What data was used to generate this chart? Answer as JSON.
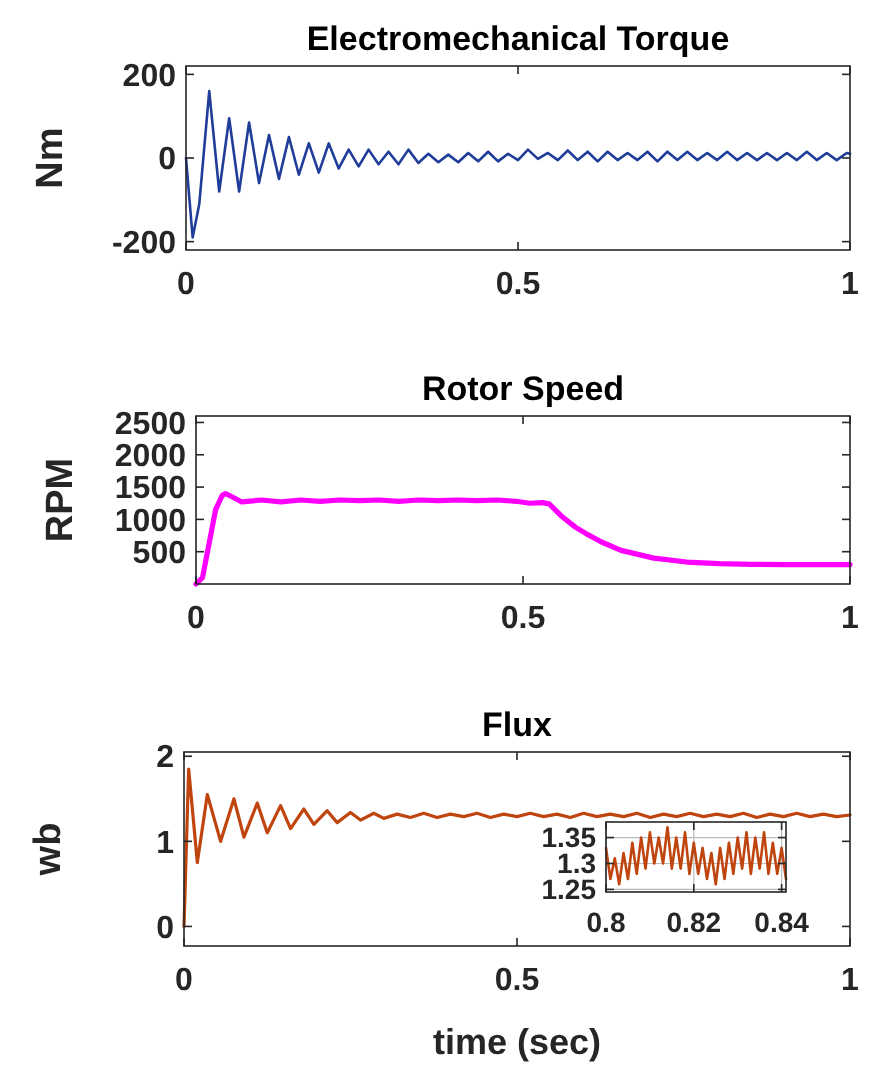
{
  "chart_data": [
    {
      "type": "line",
      "title": "Electromechanical Torque",
      "ylabel": "Nm",
      "xlim": [
        0,
        1
      ],
      "ylim": [
        -220,
        220
      ],
      "xticks": [
        0,
        0.5,
        1
      ],
      "yticks": [
        -200,
        0,
        200
      ],
      "series": [
        {
          "color": "#1f3d99",
          "x": [
            0,
            0.01,
            0.02,
            0.035,
            0.05,
            0.065,
            0.08,
            0.095,
            0.11,
            0.125,
            0.14,
            0.155,
            0.17,
            0.185,
            0.2,
            0.215,
            0.23,
            0.245,
            0.26,
            0.275,
            0.29,
            0.305,
            0.32,
            0.335,
            0.35,
            0.365,
            0.38,
            0.395,
            0.41,
            0.425,
            0.44,
            0.455,
            0.47,
            0.485,
            0.5,
            0.515,
            0.53,
            0.545,
            0.56,
            0.575,
            0.59,
            0.605,
            0.62,
            0.635,
            0.65,
            0.665,
            0.68,
            0.695,
            0.71,
            0.725,
            0.74,
            0.755,
            0.77,
            0.785,
            0.8,
            0.815,
            0.83,
            0.845,
            0.86,
            0.875,
            0.89,
            0.905,
            0.92,
            0.935,
            0.95,
            0.965,
            0.98,
            0.995,
            1
          ],
          "values": [
            0,
            -190,
            -110,
            160,
            -80,
            95,
            -80,
            85,
            -60,
            55,
            -50,
            50,
            -40,
            35,
            -35,
            35,
            -25,
            20,
            -20,
            20,
            -15,
            15,
            -15,
            20,
            -12,
            10,
            -10,
            8,
            -10,
            12,
            -8,
            15,
            -8,
            10,
            -5,
            20,
            -2,
            12,
            -5,
            18,
            -5,
            15,
            -8,
            15,
            -5,
            12,
            -5,
            15,
            -8,
            15,
            -5,
            15,
            -5,
            12,
            -5,
            15,
            -5,
            12,
            -5,
            12,
            -5,
            12,
            -5,
            15,
            -5,
            12,
            -5,
            12,
            10
          ]
        }
      ]
    },
    {
      "type": "line",
      "title": "Rotor Speed",
      "ylabel": "RPM",
      "xlim": [
        0,
        1
      ],
      "ylim": [
        0,
        2600
      ],
      "xticks": [
        0,
        0.5,
        1
      ],
      "yticks": [
        500,
        1000,
        1500,
        2000,
        2500
      ],
      "series": [
        {
          "color": "#ff00ff",
          "x": [
            0,
            0.01,
            0.03,
            0.04,
            0.045,
            0.055,
            0.07,
            0.1,
            0.13,
            0.16,
            0.19,
            0.22,
            0.25,
            0.28,
            0.31,
            0.34,
            0.37,
            0.4,
            0.43,
            0.46,
            0.49,
            0.51,
            0.53,
            0.54,
            0.56,
            0.58,
            0.6,
            0.62,
            0.65,
            0.7,
            0.75,
            0.8,
            0.85,
            0.9,
            1
          ],
          "values": [
            0,
            100,
            1150,
            1370,
            1400,
            1350,
            1270,
            1300,
            1270,
            1300,
            1280,
            1300,
            1290,
            1300,
            1280,
            1300,
            1290,
            1300,
            1290,
            1300,
            1280,
            1250,
            1260,
            1240,
            1040,
            880,
            760,
            650,
            520,
            400,
            340,
            315,
            305,
            300,
            300
          ]
        }
      ]
    },
    {
      "type": "line",
      "title": "Flux",
      "xlabel": "time (sec)",
      "ylabel": "wb",
      "xlim": [
        0,
        1
      ],
      "ylim": [
        -0.23,
        2.05
      ],
      "xticks": [
        0,
        0.5,
        1
      ],
      "yticks": [
        0,
        1,
        2
      ],
      "series": [
        {
          "color": "#c0440e",
          "x": [
            0,
            0.007,
            0.02,
            0.035,
            0.055,
            0.075,
            0.09,
            0.11,
            0.125,
            0.145,
            0.16,
            0.18,
            0.195,
            0.215,
            0.23,
            0.25,
            0.265,
            0.285,
            0.3,
            0.32,
            0.34,
            0.36,
            0.38,
            0.4,
            0.42,
            0.44,
            0.46,
            0.48,
            0.5,
            0.52,
            0.54,
            0.56,
            0.58,
            0.6,
            0.62,
            0.64,
            0.66,
            0.68,
            0.7,
            0.72,
            0.74,
            0.76,
            0.78,
            0.8,
            0.82,
            0.84,
            0.86,
            0.88,
            0.9,
            0.92,
            0.94,
            0.96,
            0.98,
            1
          ],
          "values": [
            0,
            1.85,
            0.75,
            1.55,
            1.0,
            1.5,
            1.05,
            1.45,
            1.1,
            1.42,
            1.15,
            1.38,
            1.2,
            1.36,
            1.22,
            1.34,
            1.25,
            1.33,
            1.27,
            1.32,
            1.28,
            1.33,
            1.28,
            1.32,
            1.29,
            1.33,
            1.28,
            1.32,
            1.29,
            1.33,
            1.29,
            1.32,
            1.28,
            1.33,
            1.29,
            1.32,
            1.29,
            1.33,
            1.28,
            1.32,
            1.29,
            1.33,
            1.29,
            1.32,
            1.29,
            1.33,
            1.28,
            1.32,
            1.29,
            1.33,
            1.29,
            1.32,
            1.29,
            1.31
          ]
        }
      ]
    },
    {
      "type": "line",
      "xlim": [
        0.8,
        0.841
      ],
      "ylim": [
        1.245,
        1.38
      ],
      "xticks": [
        0.8,
        0.82,
        0.84
      ],
      "yticks": [
        1.25,
        1.3,
        1.35
      ],
      "grid": true,
      "series": [
        {
          "color": "#c0440e",
          "x": [
            0.8,
            0.801,
            0.802,
            0.803,
            0.804,
            0.805,
            0.806,
            0.807,
            0.808,
            0.809,
            0.81,
            0.811,
            0.812,
            0.813,
            0.814,
            0.815,
            0.816,
            0.817,
            0.818,
            0.819,
            0.82,
            0.821,
            0.822,
            0.823,
            0.824,
            0.825,
            0.826,
            0.827,
            0.828,
            0.829,
            0.83,
            0.831,
            0.832,
            0.833,
            0.834,
            0.835,
            0.836,
            0.837,
            0.838,
            0.839,
            0.84,
            0.841
          ],
          "values": [
            1.33,
            1.27,
            1.31,
            1.26,
            1.32,
            1.27,
            1.34,
            1.28,
            1.35,
            1.29,
            1.36,
            1.3,
            1.35,
            1.3,
            1.37,
            1.29,
            1.35,
            1.29,
            1.36,
            1.28,
            1.34,
            1.28,
            1.33,
            1.27,
            1.32,
            1.26,
            1.33,
            1.27,
            1.34,
            1.28,
            1.35,
            1.29,
            1.36,
            1.28,
            1.35,
            1.29,
            1.36,
            1.28,
            1.34,
            1.28,
            1.33,
            1.27
          ]
        }
      ]
    }
  ]
}
